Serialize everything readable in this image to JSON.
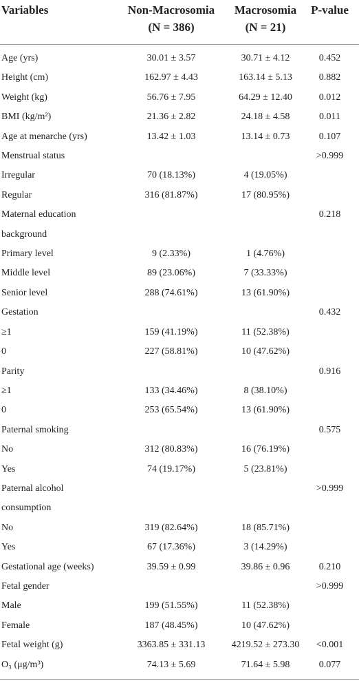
{
  "table": {
    "header": [
      [
        "Variables"
      ],
      [
        "Non-Macrosomia",
        "(N = 386)"
      ],
      [
        "Macrosomia",
        "(N = 21)"
      ],
      [
        "P-value"
      ]
    ],
    "rows": [
      [
        "Age (yrs)",
        "30.01 ± 3.57",
        "30.71 ± 4.12",
        "0.452"
      ],
      [
        "Height (cm)",
        "162.97 ± 4.43",
        "163.14 ± 5.13",
        "0.882"
      ],
      [
        "Weight (kg)",
        "56.76 ± 7.95",
        "64.29 ± 12.40",
        "0.012"
      ],
      [
        "BMI (kg/m²)",
        "21.36 ± 2.82",
        "24.18 ± 4.58",
        "0.011"
      ],
      [
        "Age at menarche (yrs)",
        "13.42 ± 1.03",
        "13.14 ± 0.73",
        "0.107"
      ],
      [
        "Menstrual status",
        null,
        null,
        ">0.999"
      ],
      [
        "Irregular",
        "70 (18.13%)",
        "4 (19.05%)",
        null
      ],
      [
        "Regular",
        "316 (81.87%)",
        "17 (80.95%)",
        null
      ],
      [
        "Maternal education background",
        null,
        null,
        "0.218"
      ],
      [
        "Primary level",
        "9 (2.33%)",
        "1 (4.76%)",
        null
      ],
      [
        "Middle level",
        "89 (23.06%)",
        "7 (33.33%)",
        null
      ],
      [
        "Senior level",
        "288 (74.61%)",
        "13 (61.90%)",
        null
      ],
      [
        "Gestation",
        null,
        null,
        "0.432"
      ],
      [
        "≥1",
        "159 (41.19%)",
        "11 (52.38%)",
        null
      ],
      [
        "0",
        "227 (58.81%)",
        "10 (47.62%)",
        null
      ],
      [
        "Parity",
        null,
        null,
        "0.916"
      ],
      [
        "≥1",
        "133 (34.46%)",
        "8 (38.10%)",
        null
      ],
      [
        "0",
        "253 (65.54%)",
        "13 (61.90%)",
        null
      ],
      [
        "Paternal smoking",
        null,
        null,
        "0.575"
      ],
      [
        "No",
        "312 (80.83%)",
        "16 (76.19%)",
        null
      ],
      [
        "Yes",
        "74 (19.17%)",
        "5 (23.81%)",
        null
      ],
      [
        "Paternal alcohol consumption",
        null,
        null,
        ">0.999"
      ],
      [
        "No",
        "319 (82.64%)",
        "18 (85.71%)",
        null
      ],
      [
        "Yes",
        "67 (17.36%)",
        "3 (14.29%)",
        null
      ],
      [
        "Gestational age (weeks)",
        "39.59 ± 0.99",
        "39.86 ± 0.96",
        "0.210"
      ],
      [
        "Fetal gender",
        null,
        null,
        ">0.999"
      ],
      [
        "Male",
        "199 (51.55%)",
        "11 (52.38%)",
        null
      ],
      [
        "Female",
        "187 (48.45%)",
        "10 (47.62%)",
        null
      ],
      [
        "Fetal weight (g)",
        "3363.85 ± 331.13",
        "4219.52 ± 273.30",
        "<0.001"
      ],
      [
        "O₃ (μg/m³)",
        "74.13 ± 5.69",
        "71.64 ± 5.98",
        "0.077"
      ]
    ]
  }
}
